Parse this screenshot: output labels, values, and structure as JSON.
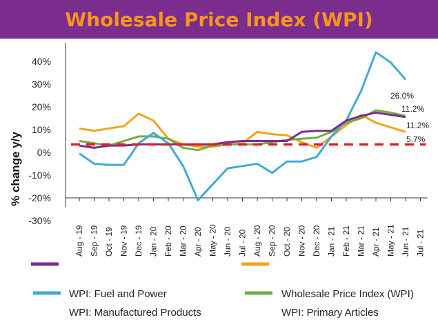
{
  "title": "Wholesale Price Index (WPI)",
  "chart_data": {
    "type": "line",
    "title": "Wholesale Price Index (WPI)",
    "xlabel": "",
    "ylabel": "% change y/y",
    "ylim": [
      -30,
      50
    ],
    "yticks": [
      -30,
      -20,
      -10,
      0,
      10,
      20,
      30,
      40
    ],
    "ytick_labels": [
      "-30%",
      "-20%",
      "-10%",
      "0%",
      "10%",
      "20%",
      "30%",
      "40%"
    ],
    "categories": [
      "Aug - 19",
      "Sep - 19",
      "Oct - 19",
      "Nov - 19",
      "Dec - 19",
      "Jan - 20",
      "Feb - 20",
      "Mar - 20",
      "Apr - 20",
      "May - 20",
      "Jun - 20",
      "Jul - 20",
      "Aug - 20",
      "Sep - 20",
      "Oct - 20",
      "Nov - 20",
      "Dec - 20",
      "Jan - 21",
      "Feb - 21",
      "Mar - 21",
      "Apr - 21",
      "May - 21",
      "Jun - 21",
      "Jul - 21"
    ],
    "grid": false,
    "reference_line": {
      "value": 3.5,
      "color": "#e31e24",
      "style": "dashed"
    },
    "series": [
      {
        "name": "WPI: Fuel and Power",
        "color": "#44a9d6",
        "values": [
          -0.5,
          -5,
          -5.5,
          -5.5,
          4,
          8.5,
          4,
          -6,
          -21,
          -14,
          -7,
          -6,
          -5,
          -9,
          -4,
          -4,
          -2,
          7,
          14,
          27,
          44,
          39.5,
          32,
          null
        ]
      },
      {
        "name": "Wholesale Price Index (WPI)",
        "color": "#6fae44",
        "values": [
          5,
          4,
          3,
          5,
          7,
          7,
          6,
          2,
          1,
          3,
          3.5,
          3.5,
          3.5,
          4.5,
          5.5,
          6,
          6.5,
          9,
          13,
          15,
          18.5,
          17.5,
          16,
          null
        ]
      },
      {
        "name": "WPI: Manufactured Products",
        "color": "#7b2d8e",
        "values": [
          3,
          2,
          3,
          3,
          3.5,
          3.5,
          3.5,
          3.5,
          3.5,
          3.5,
          4.5,
          5,
          5,
          5,
          5,
          9,
          9.5,
          9.5,
          14,
          16,
          17.5,
          16.5,
          15.5,
          null
        ]
      },
      {
        "name": "WPI: Primary Articles",
        "color": "#f7a21b",
        "values": [
          10.5,
          9.5,
          10.5,
          11.5,
          17,
          14,
          6,
          3.5,
          2.5,
          2.5,
          3.5,
          4,
          9,
          8,
          7.5,
          4.5,
          2,
          7,
          12,
          16.5,
          13,
          11,
          9,
          null
        ]
      }
    ],
    "annotations": [
      "26.0%",
      "11.2%",
      "11.2%",
      "5.7%"
    ],
    "legend_position": "bottom"
  }
}
